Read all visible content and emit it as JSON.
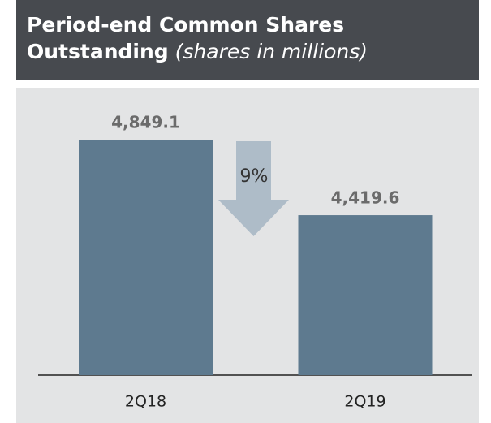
{
  "chart_data": {
    "type": "bar",
    "title": "Period-end Common Shares Outstanding",
    "subtitle": "(shares in millions)",
    "categories": [
      "2Q18",
      "2Q19"
    ],
    "values": [
      4849.1,
      4419.6
    ],
    "value_labels": [
      "4,849.1",
      "4,419.6"
    ],
    "color": "#5e7a8f",
    "ylim": [
      3510,
      5000
    ],
    "annotation": "9%"
  }
}
